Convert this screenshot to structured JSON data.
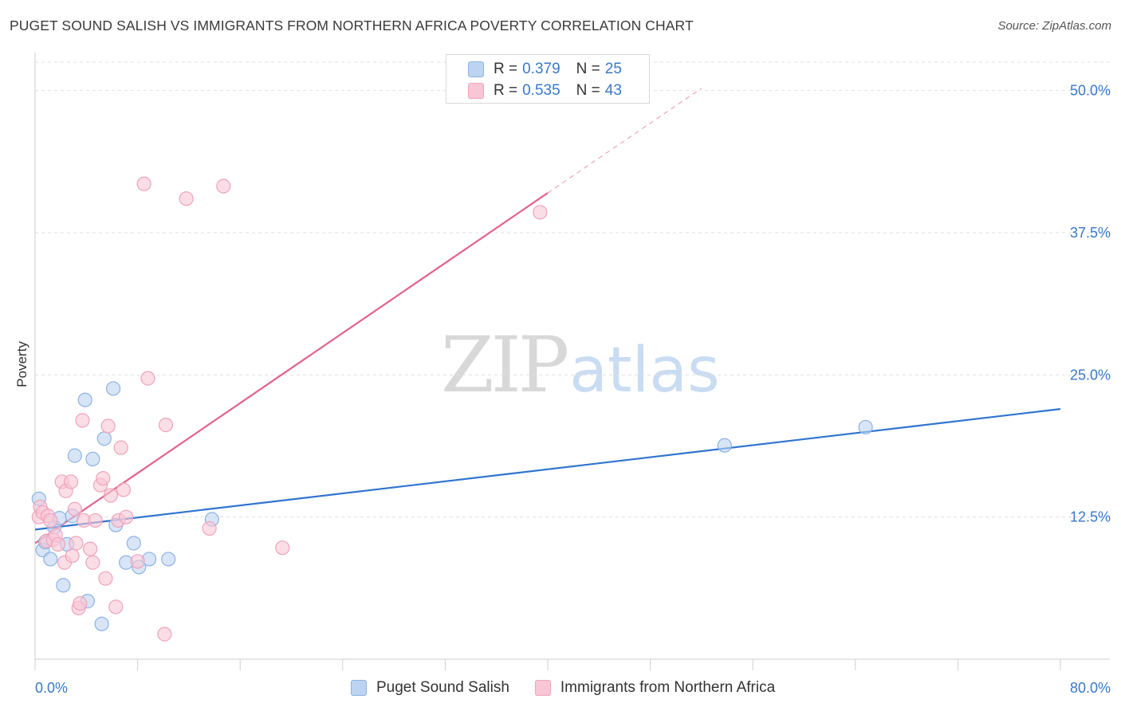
{
  "title": "PUGET SOUND SALISH VS IMMIGRANTS FROM NORTHERN AFRICA POVERTY CORRELATION CHART",
  "source": "Source: ZipAtlas.com",
  "watermark": {
    "zip": "ZIP",
    "atlas": "atlas"
  },
  "colors": {
    "blue_fill": "#bcd4f2",
    "blue_stroke": "#8db3e2",
    "blue_line": "#2f74cf",
    "pink_fill": "#f8c6d5",
    "pink_stroke": "#f0a3bb",
    "pink_line": "#e2628c",
    "axis_label": "#3a78c9",
    "grid": "#e0e0e0"
  },
  "legend": {
    "rows": [
      {
        "r_label": "R =",
        "r_value": "0.379",
        "n_label": "N =",
        "n_value": "25",
        "color": "blue"
      },
      {
        "r_label": "R =",
        "r_value": "0.535",
        "n_label": "N =",
        "n_value": "43",
        "color": "pink"
      }
    ]
  },
  "chart_data": {
    "type": "scatter",
    "title": "PUGET SOUND SALISH VS IMMIGRANTS FROM NORTHERN AFRICA POVERTY CORRELATION CHART",
    "xlabel": "",
    "ylabel": "Poverty",
    "xlim": [
      0,
      80
    ],
    "ylim": [
      0,
      52.5
    ],
    "x_tick_labels": [
      "0.0%",
      "80.0%"
    ],
    "y_ticks": [
      12.5,
      25.0,
      37.5,
      50.0
    ],
    "y_tick_labels": [
      "12.5%",
      "25.0%",
      "37.5%",
      "50.0%"
    ],
    "grid": true,
    "legend_position": "top-center",
    "series": [
      {
        "name": "Puget Sound Salish",
        "color": "blue",
        "r": "0.379",
        "n": "25",
        "points": [
          [
            0.3,
            14.1
          ],
          [
            0.6,
            9.6
          ],
          [
            0.8,
            10.3
          ],
          [
            1.2,
            8.8
          ],
          [
            1.5,
            11.6
          ],
          [
            1.9,
            12.4
          ],
          [
            2.2,
            6.5
          ],
          [
            2.5,
            10.1
          ],
          [
            2.9,
            12.6
          ],
          [
            3.1,
            17.9
          ],
          [
            3.9,
            22.8
          ],
          [
            4.1,
            5.1
          ],
          [
            4.5,
            17.6
          ],
          [
            5.2,
            3.1
          ],
          [
            5.4,
            19.4
          ],
          [
            6.1,
            23.8
          ],
          [
            6.3,
            11.8
          ],
          [
            7.1,
            8.5
          ],
          [
            7.7,
            10.2
          ],
          [
            8.1,
            8.1
          ],
          [
            8.9,
            8.8
          ],
          [
            10.4,
            8.8
          ],
          [
            13.8,
            12.3
          ],
          [
            53.8,
            18.8
          ],
          [
            64.8,
            20.4
          ]
        ],
        "trend": {
          "x": [
            0,
            80
          ],
          "y": [
            11.4,
            22.0
          ]
        }
      },
      {
        "name": "Immigrants from Northern Africa",
        "color": "pink",
        "r": "0.535",
        "n": "43",
        "points": [
          [
            0.3,
            12.5
          ],
          [
            0.4,
            13.4
          ],
          [
            0.6,
            12.9
          ],
          [
            0.9,
            10.4
          ],
          [
            1.0,
            12.6
          ],
          [
            1.2,
            12.2
          ],
          [
            1.4,
            10.5
          ],
          [
            1.6,
            10.9
          ],
          [
            1.8,
            10.1
          ],
          [
            2.1,
            15.6
          ],
          [
            2.3,
            8.5
          ],
          [
            2.4,
            14.8
          ],
          [
            2.8,
            15.6
          ],
          [
            2.9,
            9.1
          ],
          [
            3.1,
            13.2
          ],
          [
            3.2,
            10.2
          ],
          [
            3.4,
            4.5
          ],
          [
            3.5,
            4.9
          ],
          [
            3.7,
            21.0
          ],
          [
            3.8,
            12.2
          ],
          [
            4.3,
            9.7
          ],
          [
            4.5,
            8.5
          ],
          [
            4.7,
            12.2
          ],
          [
            5.1,
            15.3
          ],
          [
            5.3,
            15.9
          ],
          [
            5.5,
            7.1
          ],
          [
            5.7,
            20.5
          ],
          [
            5.9,
            14.4
          ],
          [
            6.3,
            4.6
          ],
          [
            6.5,
            12.2
          ],
          [
            6.7,
            18.6
          ],
          [
            6.9,
            14.9
          ],
          [
            7.1,
            12.5
          ],
          [
            8.0,
            8.6
          ],
          [
            8.5,
            41.8
          ],
          [
            8.8,
            24.7
          ],
          [
            10.2,
            20.6
          ],
          [
            10.1,
            2.2
          ],
          [
            11.8,
            40.5
          ],
          [
            13.6,
            11.5
          ],
          [
            14.7,
            41.6
          ],
          [
            19.3,
            9.8
          ],
          [
            39.4,
            39.3
          ]
        ],
        "trend": {
          "x": [
            0,
            40
          ],
          "y": [
            10.2,
            41.0
          ]
        },
        "trend_extension": {
          "x": [
            40,
            52
          ],
          "y": [
            41.0,
            50.2
          ]
        }
      }
    ]
  }
}
